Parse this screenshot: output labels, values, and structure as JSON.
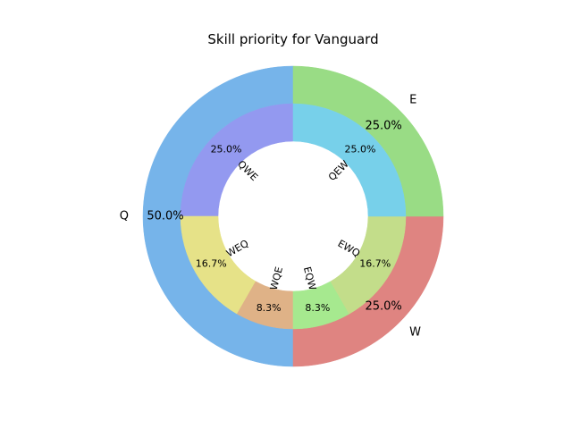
{
  "chart_data": {
    "type": "pie",
    "variant": "nested-donut",
    "title": "Skill priority for Vanguard",
    "start_angle_deg": 90,
    "direction": "counterclockwise",
    "outer": {
      "labels": [
        "Q",
        "W",
        "E"
      ],
      "values": [
        50.0,
        25.0,
        25.0
      ],
      "pct_labels": [
        "50.0%",
        "25.0%",
        "25.0%"
      ],
      "colors": [
        "#76b4ea",
        "#df8481",
        "#99dc85"
      ]
    },
    "inner": {
      "labels": [
        "QWE",
        "WEQ",
        "WQE",
        "EQW",
        "EWQ",
        "QEW"
      ],
      "values": [
        25.0,
        16.7,
        8.3,
        8.3,
        16.7,
        25.0
      ],
      "pct_labels": [
        "25.0%",
        "16.7%",
        "8.3%",
        "8.3%",
        "16.7%",
        "25.0%"
      ],
      "colors": [
        "#9399f0",
        "#e6e288",
        "#dfb287",
        "#a6e98f",
        "#c3dd8a",
        "#77d0ea"
      ]
    }
  }
}
